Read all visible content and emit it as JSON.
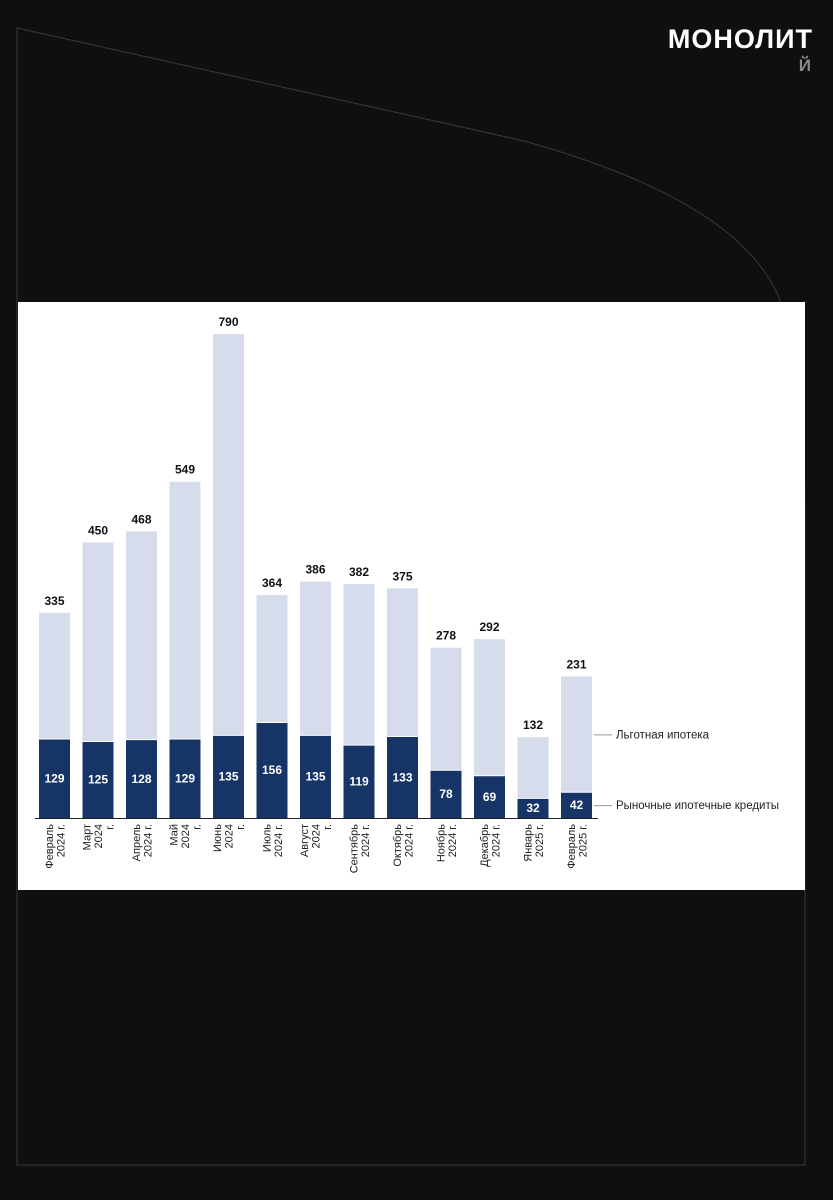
{
  "brand": {
    "logo": "МОНОЛИТ",
    "sub": "Й"
  },
  "colors": {
    "background": "#0f0f0f",
    "card": "#ffffff",
    "preferential": "#d6dcec",
    "market": "#163465",
    "outline": "#ffffff"
  },
  "chart_data": {
    "type": "bar",
    "stacked": true,
    "title": "",
    "xlabel": "",
    "ylabel": "",
    "ylim": [
      0,
      800
    ],
    "grid": false,
    "legend": "right",
    "categories": [
      [
        "Февраль",
        "2024 г."
      ],
      [
        "Март",
        "2024",
        "г."
      ],
      [
        "Апрель",
        "2024 г."
      ],
      [
        "Май",
        "2024",
        "г."
      ],
      [
        "Июнь",
        "2024",
        "г."
      ],
      [
        "Июль",
        "2024 г."
      ],
      [
        "Август",
        "2024",
        "г."
      ],
      [
        "Сентябрь",
        "2024 г."
      ],
      [
        "Октябрь",
        "2024 г."
      ],
      [
        "Ноябрь",
        "2024 г."
      ],
      [
        "Декабрь",
        "2024 г."
      ],
      [
        "Январь",
        "2025 г."
      ],
      [
        "Февраль",
        "2025 г."
      ]
    ],
    "totals": [
      335,
      450,
      468,
      549,
      790,
      364,
      386,
      382,
      375,
      278,
      292,
      132,
      231
    ],
    "series": [
      {
        "name": "Рыночные ипотечные кредиты",
        "values": [
          129,
          125,
          128,
          129,
          135,
          156,
          135,
          119,
          133,
          78,
          69,
          32,
          42
        ]
      },
      {
        "name": "Льготная ипотека",
        "values": [
          206,
          325,
          340,
          420,
          655,
          208,
          251,
          263,
          242,
          200,
          223,
          100,
          189
        ]
      }
    ]
  }
}
